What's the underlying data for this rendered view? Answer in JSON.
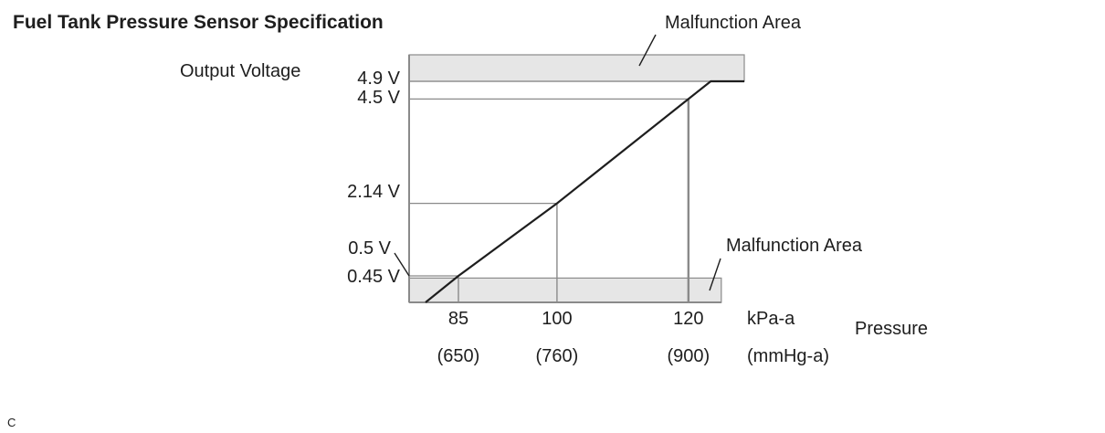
{
  "chart_data": {
    "type": "line",
    "title": "Fuel Tank Pressure Sensor Specification",
    "ylabel": "Output Voltage",
    "xlabel": "Pressure",
    "x_unit": "kPa-a",
    "x_alt_unit": "(mmHg-a)",
    "x_ticks": [
      {
        "value": 85,
        "label": "85",
        "alt_label": "(650)"
      },
      {
        "value": 100,
        "label": "100",
        "alt_label": "(760)"
      },
      {
        "value": 120,
        "label": "120",
        "alt_label": "(900)"
      }
    ],
    "y_ticks": [
      {
        "value": 4.9,
        "label": "4.9 V"
      },
      {
        "value": 4.5,
        "label": "4.5 V"
      },
      {
        "value": 2.14,
        "label": "2.14 V"
      },
      {
        "value": 0.5,
        "label": "0.5 V"
      },
      {
        "value": 0.45,
        "label": "0.45 V"
      }
    ],
    "xlim": [
      77.5,
      128.5
    ],
    "ylim": [
      -0.1,
      5.5
    ],
    "series": [
      {
        "x": [
          80,
          85,
          100,
          120,
          123.4,
          128.5
        ],
        "y": [
          -0.1,
          0.5,
          2.14,
          4.5,
          4.9,
          4.9
        ]
      }
    ],
    "reference_lines": [
      {
        "x": 85,
        "y": 0.5
      },
      {
        "x": 100,
        "y": 2.14
      },
      {
        "x": 120,
        "y": 4.5
      }
    ],
    "regions": [
      {
        "label": "Malfunction Area",
        "y_from": 4.9,
        "y_to": 5.5
      },
      {
        "label": "Malfunction Area",
        "y_from": -0.1,
        "y_to": 0.45
      }
    ],
    "footnote": "C",
    "colors": {
      "fill": "#e6e6e6",
      "grid": "#8a8a8a",
      "line": "#1e1e1e"
    }
  }
}
